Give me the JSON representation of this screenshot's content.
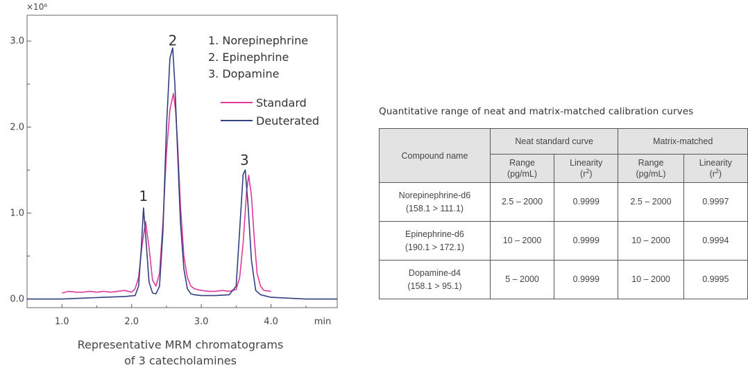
{
  "chart_data": {
    "type": "line",
    "scale_label": "×10⁶",
    "x_unit": "min",
    "xlim": [
      0.5,
      4.95
    ],
    "ylim": [
      -0.1,
      3.3
    ],
    "x_ticks": [
      "1.0",
      "2.0",
      "3.0",
      "4.0"
    ],
    "y_ticks": [
      "0.0",
      "1.0",
      "2.0",
      "3.0"
    ],
    "legend": {
      "placement": "top-right",
      "entries": [
        "Standard",
        "Deuterated"
      ]
    },
    "peak_list": [
      "1. Norepinephrine",
      "2. Epinephrine",
      "3. Dopamine"
    ],
    "peak_labels": [
      {
        "label": "1",
        "x": 2.17,
        "y": 1.14
      },
      {
        "label": "2",
        "x": 2.59,
        "y": 2.95
      },
      {
        "label": "3",
        "x": 3.62,
        "y": 1.56
      }
    ],
    "series": [
      {
        "name": "Standard",
        "color": "#e0389a",
        "x": [
          1.0,
          1.1,
          1.2,
          1.3,
          1.4,
          1.5,
          1.6,
          1.7,
          1.8,
          1.9,
          2.0,
          2.05,
          2.1,
          2.15,
          2.2,
          2.25,
          2.3,
          2.35,
          2.4,
          2.45,
          2.5,
          2.55,
          2.6,
          2.63,
          2.66,
          2.7,
          2.75,
          2.8,
          2.85,
          2.9,
          3.0,
          3.1,
          3.2,
          3.3,
          3.4,
          3.5,
          3.55,
          3.6,
          3.65,
          3.68,
          3.72,
          3.76,
          3.8,
          3.85,
          3.9,
          4.0
        ],
        "y": [
          0.07,
          0.09,
          0.08,
          0.08,
          0.09,
          0.08,
          0.09,
          0.08,
          0.09,
          0.1,
          0.08,
          0.12,
          0.25,
          0.62,
          0.9,
          0.6,
          0.22,
          0.15,
          0.3,
          0.9,
          1.7,
          2.2,
          2.39,
          2.2,
          1.8,
          1.1,
          0.5,
          0.25,
          0.15,
          0.12,
          0.1,
          0.09,
          0.09,
          0.1,
          0.09,
          0.11,
          0.25,
          0.65,
          1.25,
          1.44,
          1.2,
          0.7,
          0.3,
          0.15,
          0.1,
          0.09
        ]
      },
      {
        "name": "Deuterated",
        "color": "#2f3f7f",
        "x": [
          0.5,
          1.0,
          1.3,
          1.6,
          1.9,
          2.05,
          2.1,
          2.14,
          2.17,
          2.2,
          2.25,
          2.3,
          2.35,
          2.4,
          2.45,
          2.5,
          2.55,
          2.59,
          2.62,
          2.66,
          2.7,
          2.75,
          2.8,
          2.85,
          2.9,
          3.0,
          3.2,
          3.4,
          3.5,
          3.55,
          3.6,
          3.63,
          3.67,
          3.72,
          3.78,
          3.85,
          4.0,
          4.5,
          4.95
        ],
        "y": [
          0.0,
          0.0,
          0.01,
          0.02,
          0.03,
          0.04,
          0.15,
          0.6,
          1.06,
          0.75,
          0.2,
          0.07,
          0.06,
          0.15,
          0.8,
          2.0,
          2.8,
          2.92,
          2.5,
          1.7,
          0.9,
          0.35,
          0.12,
          0.06,
          0.05,
          0.04,
          0.04,
          0.05,
          0.15,
          0.8,
          1.45,
          1.5,
          1.1,
          0.45,
          0.1,
          0.05,
          0.02,
          0.0,
          0.0
        ]
      }
    ]
  },
  "caption": {
    "line1": "Representative MRM chromatograms",
    "line2": "of 3 catecholamines"
  },
  "table": {
    "title": "Quantitative range of neat and matrix-matched calibration curves",
    "headers": {
      "compound": "Compound name",
      "neat": "Neat standard curve",
      "matrix": "Matrix-matched",
      "range_label": "Range",
      "range_unit": "(pg/mL)",
      "linearity_label": "Linearity",
      "linearity_unit_pre": "(r",
      "linearity_unit_sup": "2",
      "linearity_unit_post": ")"
    },
    "rows": [
      {
        "name": "Norepinephrine-d6",
        "transition": "(158.1 > 111.1)",
        "neat_range": "2.5 – 2000",
        "neat_linearity": "0.9999",
        "matrix_range": "2.5 – 2000",
        "matrix_linearity": "0.9997"
      },
      {
        "name": "Epinephrine-d6",
        "transition": "(190.1 > 172.1)",
        "neat_range": "10 – 2000",
        "neat_linearity": "0.9999",
        "matrix_range": "10 – 2000",
        "matrix_linearity": "0.9994"
      },
      {
        "name": "Dopamine-d4",
        "transition": "(158.1 > 95.1)",
        "neat_range": "5 – 2000",
        "neat_linearity": "0.9999",
        "matrix_range": "10 – 2000",
        "matrix_linearity": "0.9995"
      }
    ]
  }
}
